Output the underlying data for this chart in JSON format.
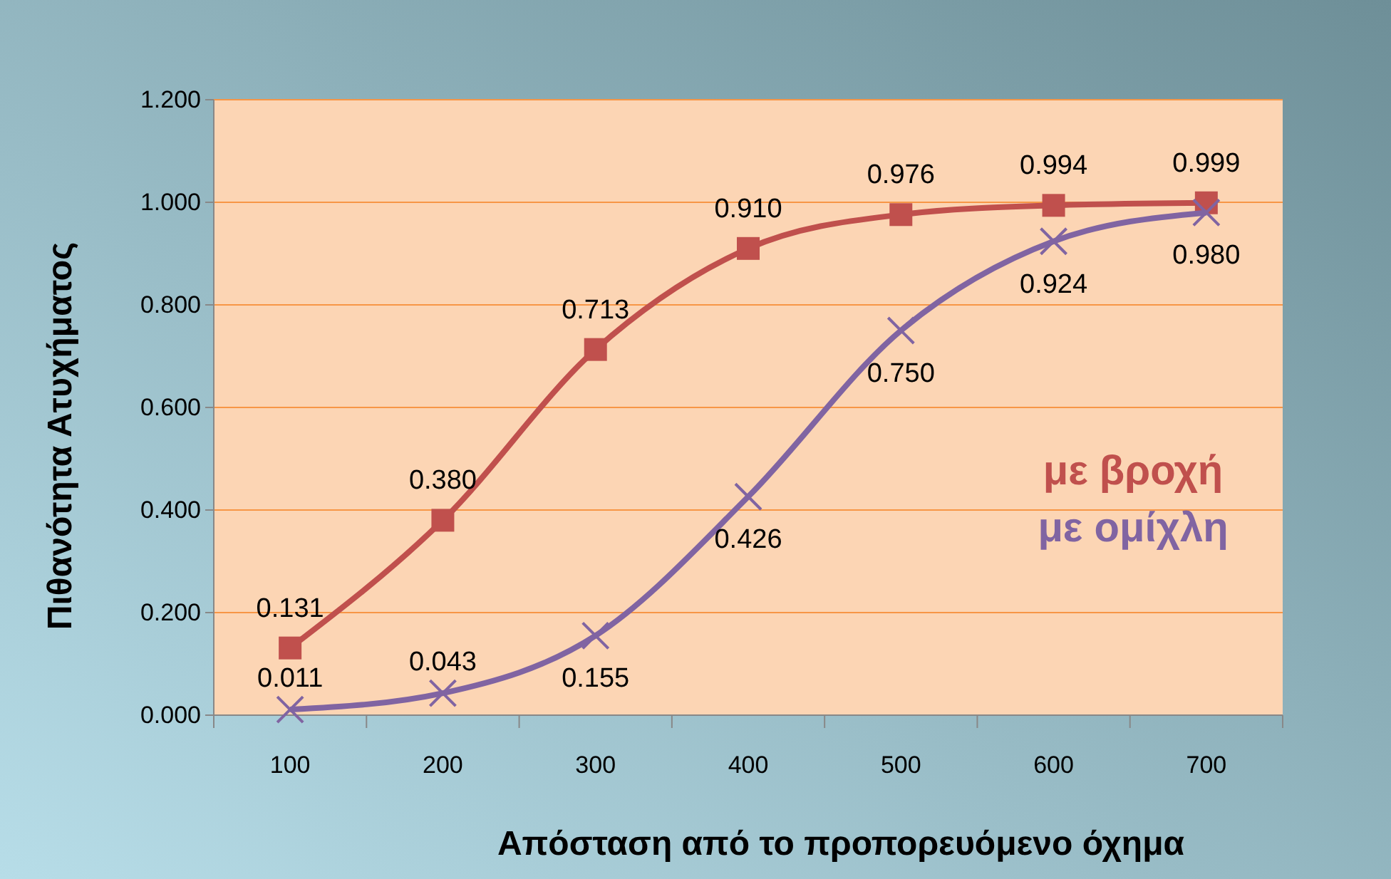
{
  "chart_data": {
    "type": "line",
    "xlabel": "Απόσταση από το προπορευόμενο όχημα",
    "ylabel": "Πιθανότητα Ατυχήματος",
    "categories": [
      "100",
      "200",
      "300",
      "400",
      "500",
      "600",
      "700"
    ],
    "series": [
      {
        "name": "με βροχή",
        "color": "#c0504d",
        "marker": "square",
        "values": [
          0.131,
          0.38,
          0.713,
          0.91,
          0.976,
          0.994,
          0.999
        ],
        "value_labels": [
          "0.131",
          "0.380",
          "0.713",
          "0.910",
          "0.976",
          "0.994",
          "0.999"
        ]
      },
      {
        "name": "με ομίχλη",
        "color": "#8064a2",
        "marker": "cross",
        "values": [
          0.011,
          0.043,
          0.155,
          0.426,
          0.75,
          0.924,
          0.98
        ],
        "value_labels": [
          "0.011",
          "0.043",
          "0.155",
          "0.426",
          "0.750",
          "0.924",
          "0.980"
        ]
      }
    ],
    "ylim": [
      0,
      1.2
    ],
    "yticks": [
      {
        "value": 0,
        "label": "0.000"
      },
      {
        "value": 0.2,
        "label": "0.200"
      },
      {
        "value": 0.4,
        "label": "0.400"
      },
      {
        "value": 0.6,
        "label": "0.600"
      },
      {
        "value": 0.8,
        "label": "0.800"
      },
      {
        "value": 1,
        "label": "1.000"
      },
      {
        "value": 1.2,
        "label": "1.200"
      }
    ],
    "grid": "y",
    "legend": "right"
  }
}
